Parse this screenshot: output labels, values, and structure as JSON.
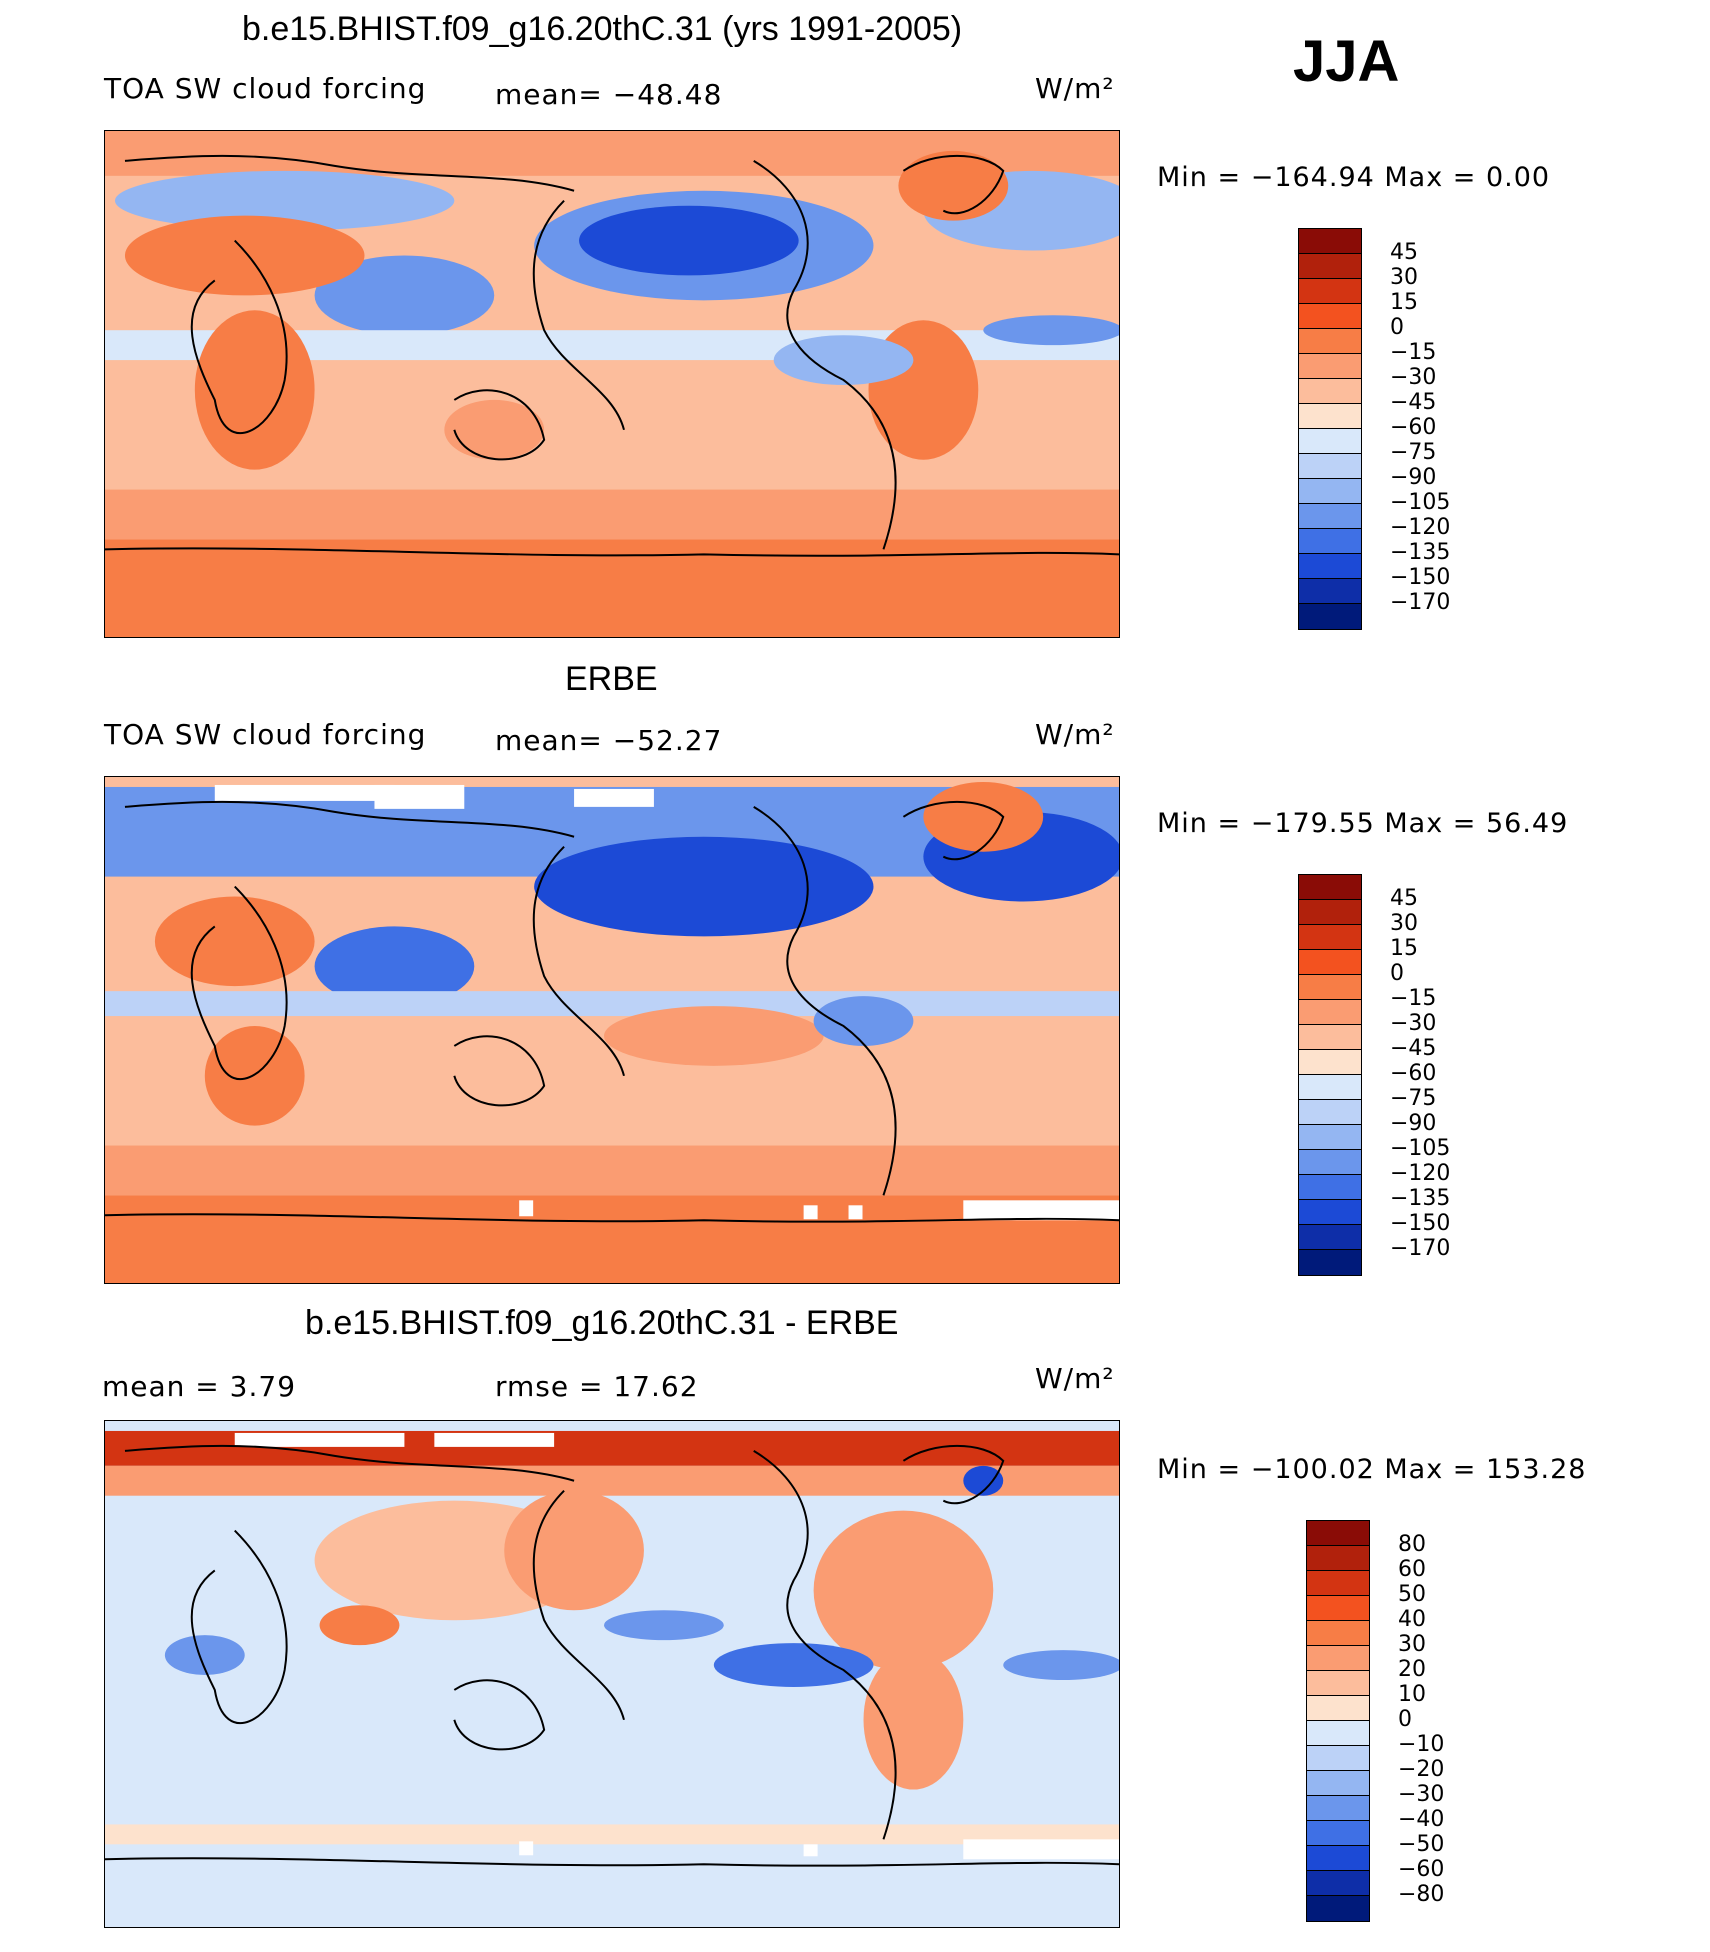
{
  "season": "JJA",
  "panels": [
    {
      "title": "b.e15.BHIST.f09_g16.20thC.31 (yrs 1991-2005)",
      "left_label": "TOA SW cloud forcing",
      "stat1": "mean= −48.48",
      "stat2": "",
      "units": "W/m²",
      "minmax": "Min  =  −164.94  Max  =     0.00",
      "colorbar": {
        "labels": [
          "45",
          "30",
          "15",
          "0",
          "−15",
          "−30",
          "−45",
          "−60",
          "−75",
          "−90",
          "−105",
          "−120",
          "−135",
          "−150",
          "−170"
        ],
        "colors": [
          "#8a0c06",
          "#b1210c",
          "#d33412",
          "#f3521f",
          "#f77d46",
          "#fa9c72",
          "#fcbd9c",
          "#fde2cd",
          "#d9e8fa",
          "#bcd2f7",
          "#94b6f2",
          "#6b96ec",
          "#3f70e5",
          "#1c4ad6",
          "#0e2ea8",
          "#001a7a"
        ]
      }
    },
    {
      "title": "ERBE",
      "left_label": "TOA SW cloud forcing",
      "stat1": "mean= −52.27",
      "stat2": "",
      "units": "W/m²",
      "minmax": "Min  =  −179.55  Max  =    56.49",
      "colorbar": {
        "labels": [
          "45",
          "30",
          "15",
          "0",
          "−15",
          "−30",
          "−45",
          "−60",
          "−75",
          "−90",
          "−105",
          "−120",
          "−135",
          "−150",
          "−170"
        ],
        "colors": [
          "#8a0c06",
          "#b1210c",
          "#d33412",
          "#f3521f",
          "#f77d46",
          "#fa9c72",
          "#fcbd9c",
          "#fde2cd",
          "#d9e8fa",
          "#bcd2f7",
          "#94b6f2",
          "#6b96ec",
          "#3f70e5",
          "#1c4ad6",
          "#0e2ea8",
          "#001a7a"
        ]
      }
    },
    {
      "title": "b.e15.BHIST.f09_g16.20thC.31 - ERBE",
      "left_label": "mean  =     3.79",
      "stat1": "rmse  =    17.62",
      "stat2": "",
      "units": "W/m²",
      "minmax": "Min  =  −100.02  Max  =  153.28",
      "colorbar": {
        "labels": [
          "80",
          "60",
          "50",
          "40",
          "30",
          "20",
          "10",
          "0",
          "−10",
          "−20",
          "−30",
          "−40",
          "−50",
          "−60",
          "−80"
        ],
        "colors": [
          "#8a0c06",
          "#b1210c",
          "#d33412",
          "#f3521f",
          "#f77d46",
          "#fa9c72",
          "#fcbd9c",
          "#fde2cd",
          "#d9e8fa",
          "#bcd2f7",
          "#94b6f2",
          "#6b96ec",
          "#3f70e5",
          "#1c4ad6",
          "#0e2ea8",
          "#001a7a"
        ]
      }
    }
  ],
  "map_colors": {
    "warm_strong": "#f77d46",
    "warm": "#fa9c72",
    "warm_light": "#fcbd9c",
    "warm_pale": "#fde2cd",
    "cool_pale": "#d9e8fa",
    "cool_light": "#bcd2f7",
    "cool": "#6b96ec",
    "cool_strong": "#1c4ad6",
    "cool_deep": "#0e2ea8",
    "hot": "#d33412",
    "hot_deep": "#b1210c",
    "missing": "#ffffff",
    "coast": "#000000"
  }
}
